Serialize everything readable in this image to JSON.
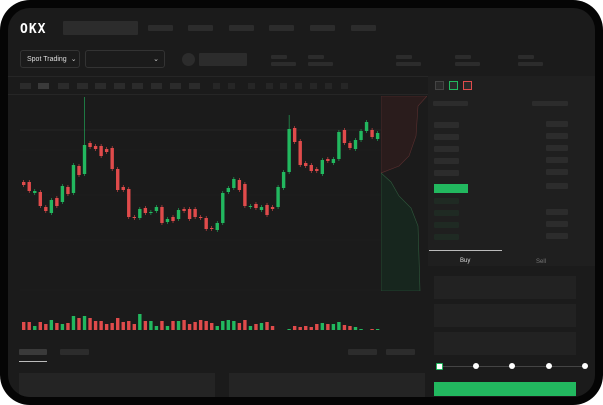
{
  "header": {
    "logo": "OKX"
  },
  "market_selector": {
    "label": "Spot Trading",
    "chevron": "chevron-down-icon",
    "pair_chevron": "chevron-down-icon"
  },
  "trade_panel": {
    "tabs": [
      "Buy",
      "Sell"
    ],
    "active_tab": "Buy",
    "leverage_slider_steps": 5,
    "slider_value": 0
  },
  "colors": {
    "up": "#22b85f",
    "down": "#e04b4b",
    "background": "#1b1b1b",
    "accent": "#22b85f"
  },
  "chart_data": {
    "type": "candlestick",
    "candles": [
      [
        118,
        115
      ],
      [
        118,
        109
      ],
      [
        107,
        109
      ],
      [
        108,
        94
      ],
      [
        93,
        89
      ],
      [
        87,
        100
      ],
      [
        102,
        94
      ],
      [
        98,
        114
      ],
      [
        113,
        106
      ],
      [
        107,
        135
      ],
      [
        134,
        125
      ],
      [
        126,
        155
      ],
      [
        157,
        153
      ],
      [
        154,
        151
      ],
      [
        154,
        144
      ],
      [
        151,
        148
      ],
      [
        152,
        131
      ],
      [
        131,
        110
      ],
      [
        113,
        110
      ],
      [
        111,
        83
      ],
      [
        83,
        82
      ],
      [
        82,
        91
      ],
      [
        92,
        87
      ],
      [
        87,
        88
      ],
      [
        89,
        93
      ],
      [
        93,
        77
      ],
      [
        78,
        81
      ],
      [
        83,
        79
      ],
      [
        81,
        90
      ],
      [
        91,
        89
      ],
      [
        91,
        81
      ],
      [
        91,
        83
      ],
      [
        83,
        82
      ],
      [
        82,
        71
      ],
      [
        72,
        71
      ],
      [
        70,
        77
      ],
      [
        77,
        107
      ],
      [
        108,
        112
      ],
      [
        112,
        121
      ],
      [
        120,
        110
      ],
      [
        116,
        94
      ],
      [
        93,
        94
      ],
      [
        96,
        92
      ],
      [
        90,
        93
      ],
      [
        95,
        85
      ],
      [
        93,
        91
      ],
      [
        93,
        113
      ],
      [
        112,
        128
      ],
      [
        128,
        171
      ],
      [
        172,
        158
      ],
      [
        159,
        135
      ],
      [
        137,
        134
      ],
      [
        135,
        129
      ],
      [
        131,
        129
      ],
      [
        126,
        140
      ],
      [
        141,
        139
      ],
      [
        137,
        141
      ],
      [
        141,
        168
      ],
      [
        170,
        157
      ],
      [
        157,
        152
      ],
      [
        151,
        160
      ],
      [
        160,
        169
      ],
      [
        169,
        178
      ],
      [
        170,
        163
      ],
      [
        161,
        167
      ]
    ],
    "volume": [
      11,
      11,
      7,
      11,
      9,
      13,
      10,
      9,
      10,
      17,
      15,
      17,
      15,
      12,
      12,
      9,
      10,
      15,
      11,
      12,
      9,
      19,
      12,
      12,
      7,
      12,
      7,
      12,
      12,
      13,
      9,
      11,
      13,
      12,
      10,
      7,
      12,
      13,
      12,
      10,
      13,
      7,
      9,
      10,
      11,
      7,
      2,
      3,
      4,
      7,
      6,
      7,
      6,
      9,
      10,
      9,
      9,
      11,
      8,
      7,
      6,
      4,
      2,
      4,
      4
    ],
    "reference_line": 170
  }
}
